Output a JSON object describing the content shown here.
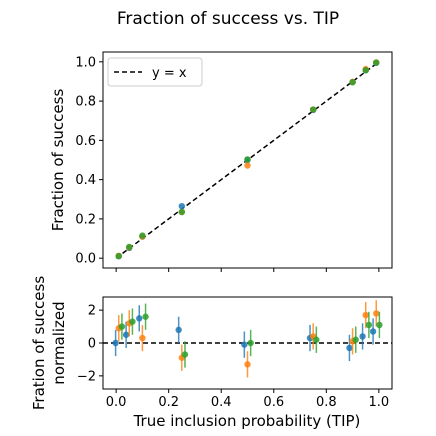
{
  "chart_data": [
    {
      "type": "scatter",
      "title": "Fraction of success vs. TIP",
      "xlabel": "",
      "ylabel": "Fraction of success",
      "xlim": [
        -0.05,
        1.05
      ],
      "ylim": [
        -0.05,
        1.05
      ],
      "xticks": [
        0.0,
        0.2,
        0.4,
        0.6,
        0.8,
        1.0
      ],
      "xtick_labels": [
        "",
        "",
        "",
        "",
        "",
        ""
      ],
      "yticks": [
        0.0,
        0.2,
        0.4,
        0.6,
        0.8,
        1.0
      ],
      "ytick_labels": [
        "0.0",
        "0.2",
        "0.4",
        "0.6",
        "0.8",
        "1.0"
      ],
      "legend": {
        "position": "top-left",
        "entries": [
          {
            "label": "y = x",
            "style": "dashed",
            "color": "#000000"
          }
        ]
      },
      "reference_line": {
        "from": [
          0,
          0
        ],
        "to": [
          1,
          1
        ],
        "style": "dashed",
        "color": "#000000"
      },
      "x": [
        0.01,
        0.05,
        0.1,
        0.25,
        0.5,
        0.75,
        0.9,
        0.95,
        0.99
      ],
      "series": [
        {
          "color": "#1f77b4",
          "values": [
            0.01,
            0.052,
            0.11,
            0.265,
            0.5,
            0.755,
            0.897,
            0.957,
            0.995
          ]
        },
        {
          "color": "#ff7f0e",
          "values": [
            0.012,
            0.055,
            0.11,
            0.235,
            0.472,
            0.757,
            0.898,
            0.963,
            0.997
          ]
        },
        {
          "color": "#2ca02c",
          "values": [
            0.011,
            0.057,
            0.115,
            0.235,
            0.503,
            0.757,
            0.896,
            0.957,
            0.996
          ]
        }
      ]
    },
    {
      "type": "scatter",
      "title": "",
      "xlabel": "True inclusion probability (TIP)",
      "ylabel": "Fration of success normalized",
      "ylabel_lines": [
        "Fration of success",
        "normalized"
      ],
      "xlim": [
        -0.05,
        1.05
      ],
      "ylim": [
        -2.8,
        2.8
      ],
      "xticks": [
        0.0,
        0.2,
        0.4,
        0.6,
        0.8,
        1.0
      ],
      "xtick_labels": [
        "0.0",
        "0.2",
        "0.4",
        "0.6",
        "0.8",
        "1.0"
      ],
      "yticks": [
        -2,
        0,
        2
      ],
      "ytick_labels": [
        "−2",
        "0",
        "2"
      ],
      "reference_line": {
        "from": [
          -0.05,
          0
        ],
        "to": [
          1.05,
          0
        ],
        "style": "dashed",
        "color": "#000000"
      },
      "error_bars": true,
      "x": [
        0.01,
        0.05,
        0.1,
        0.25,
        0.5,
        0.75,
        0.9,
        0.95,
        0.99
      ],
      "series": [
        {
          "color": "#1f77b4",
          "x_offset": -0.012,
          "values": [
            0.0,
            0.5,
            1.5,
            0.8,
            -0.1,
            0.3,
            -0.3,
            0.4,
            0.7
          ],
          "err": [
            0.8,
            0.8,
            0.8,
            0.8,
            0.8,
            0.8,
            0.8,
            0.8,
            0.8
          ]
        },
        {
          "color": "#ff7f0e",
          "x_offset": 0.0,
          "values": [
            0.9,
            1.2,
            0.3,
            -0.9,
            -1.3,
            0.4,
            0.1,
            1.7,
            1.8
          ],
          "err": [
            0.8,
            0.8,
            0.8,
            0.8,
            0.8,
            0.8,
            0.8,
            0.8,
            0.8
          ]
        },
        {
          "color": "#2ca02c",
          "x_offset": 0.012,
          "values": [
            1.0,
            1.3,
            1.6,
            -0.7,
            0.0,
            0.2,
            0.2,
            1.1,
            1.1
          ],
          "err": [
            0.8,
            0.8,
            0.8,
            0.8,
            0.8,
            0.8,
            0.8,
            0.8,
            0.8
          ]
        }
      ]
    }
  ]
}
